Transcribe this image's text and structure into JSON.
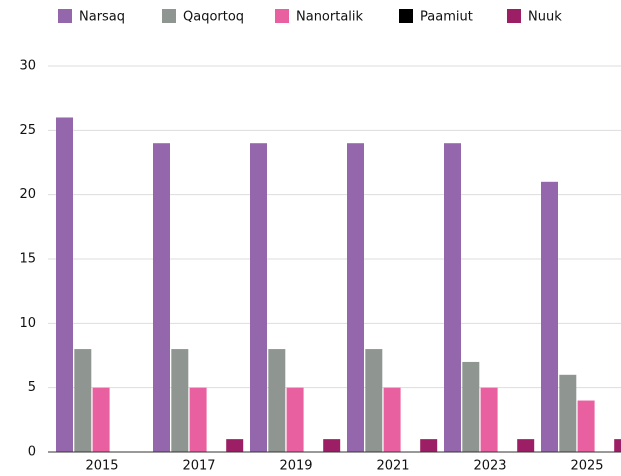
{
  "chart_data": {
    "type": "bar",
    "categories": [
      "2015",
      "2017",
      "2019",
      "2021",
      "2023",
      "2025"
    ],
    "series": [
      {
        "name": "Narsaq",
        "color": "#9467ad",
        "values": [
          26,
          24,
          24,
          24,
          24,
          21
        ]
      },
      {
        "name": "Qaqortoq",
        "color": "#8f9691",
        "values": [
          8,
          8,
          8,
          8,
          7,
          6
        ]
      },
      {
        "name": "Nanortalik",
        "color": "#e8609f",
        "values": [
          5,
          5,
          5,
          5,
          5,
          4
        ]
      },
      {
        "name": "Paamiut",
        "color": "#000000",
        "values": [
          0,
          0,
          0,
          0,
          0,
          0
        ]
      },
      {
        "name": "Nuuk",
        "color": "#9c1f66",
        "values": [
          0,
          1,
          1,
          1,
          1,
          1
        ]
      }
    ],
    "ylim": [
      0,
      30
    ],
    "yticks": [
      0,
      5,
      10,
      15,
      20,
      25,
      30
    ],
    "grid": true,
    "legend": "top"
  }
}
